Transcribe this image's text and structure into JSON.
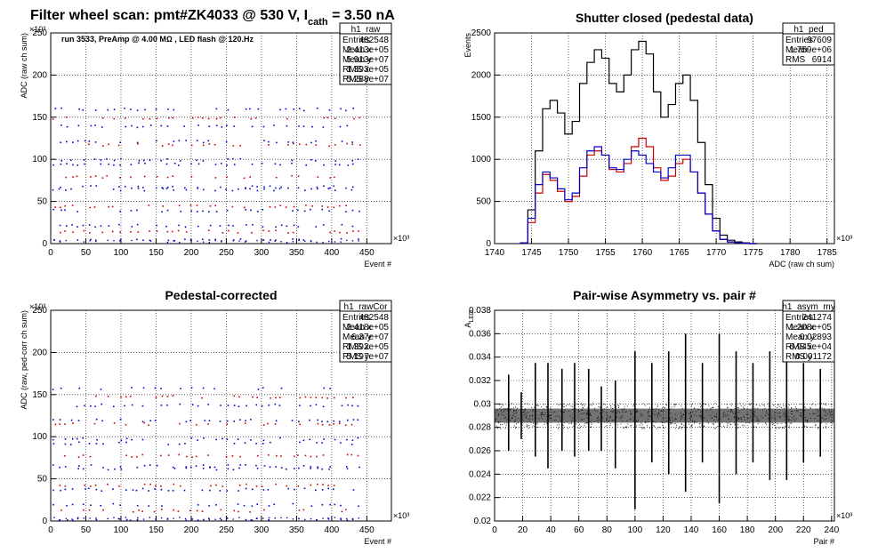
{
  "canvas_title_parts": {
    "pre": "Filter wheel scan: pmt#ZK4033 @   530 V, I",
    "sub": "cath",
    "post": " = 3.50 nA"
  },
  "chart_data": [
    {
      "id": "raw",
      "type": "scatter",
      "title": "",
      "xlabel": "Event #",
      "ylabel": "ADC (raw ch sum)",
      "x_multiplier": "×10³",
      "y_multiplier": "×10³",
      "xlim": [
        0,
        485
      ],
      "ylim": [
        0,
        250
      ],
      "xticks": [
        0,
        50,
        100,
        150,
        200,
        250,
        300,
        350,
        400,
        450
      ],
      "yticks": [
        0,
        50,
        100,
        150,
        200,
        250
      ],
      "grid": true,
      "annotation": "run 3533, PreAmp @ 4.00 MΩ , LED flash @  120.Hz",
      "levels": [
        160,
        150,
        140,
        122,
        118,
        100,
        95,
        80,
        68,
        65,
        45,
        40,
        22,
        15,
        5
      ],
      "colors": {
        "a": "#0000cc",
        "b": "#cc0000"
      },
      "stats": {
        "title": "h1_raw",
        "rows": [
          [
            "Entries",
            "482548"
          ],
          [
            "Mean x",
            "2.413e+05"
          ],
          [
            "Mean y",
            "5.913e+07"
          ],
          [
            "RMS x",
            "1.393e+05"
          ],
          [
            "RMS y",
            "5.288e+07"
          ]
        ]
      }
    },
    {
      "id": "ped",
      "type": "line",
      "title": "Shutter closed (pedestal data)",
      "xlabel": "ADC (raw ch sum)",
      "ylabel": "Events",
      "x_multiplier": "×10³",
      "xlim": [
        1740,
        1786
      ],
      "ylim": [
        0,
        2500
      ],
      "xticks": [
        1740,
        1745,
        1750,
        1755,
        1760,
        1765,
        1770,
        1775,
        1780,
        1785
      ],
      "yticks": [
        0,
        500,
        1000,
        1500,
        2000,
        2500
      ],
      "grid": true,
      "x": [
        1744,
        1745,
        1746,
        1747,
        1748,
        1749,
        1750,
        1751,
        1752,
        1753,
        1754,
        1755,
        1756,
        1757,
        1758,
        1759,
        1760,
        1761,
        1762,
        1763,
        1764,
        1765,
        1766,
        1767,
        1768,
        1769,
        1770,
        1771,
        1772,
        1773,
        1774,
        1775
      ],
      "series": [
        {
          "color": "#000000",
          "values": [
            10,
            400,
            1100,
            1600,
            1700,
            1550,
            1300,
            1450,
            1900,
            2150,
            2300,
            2200,
            1900,
            1800,
            2000,
            2300,
            2400,
            2250,
            1800,
            1500,
            1650,
            1900,
            2000,
            1700,
            1200,
            700,
            300,
            100,
            40,
            20,
            10,
            0
          ]
        },
        {
          "color": "#cc0000",
          "values": [
            5,
            250,
            600,
            820,
            750,
            620,
            500,
            560,
            800,
            1050,
            1100,
            1050,
            880,
            850,
            950,
            1150,
            1250,
            1150,
            900,
            750,
            800,
            950,
            1000,
            850,
            600,
            350,
            150,
            50,
            20,
            10,
            5,
            0
          ]
        },
        {
          "color": "#0000cc",
          "values": [
            5,
            300,
            700,
            850,
            780,
            650,
            520,
            600,
            900,
            1100,
            1150,
            1050,
            900,
            880,
            1000,
            1100,
            1050,
            950,
            850,
            780,
            900,
            1050,
            1050,
            850,
            600,
            350,
            150,
            50,
            20,
            10,
            5,
            0
          ]
        }
      ],
      "stats": {
        "title": "h1_ped",
        "rows": [
          [
            "Entries",
            "97609"
          ],
          [
            "Mean",
            "1.759e+06"
          ],
          [
            "RMS",
            "6914"
          ]
        ]
      }
    },
    {
      "id": "rawCor",
      "type": "scatter",
      "title": "Pedestal-corrected",
      "xlabel": "Event #",
      "ylabel": "ADC (raw, ped-corr ch sum)",
      "x_multiplier": "×10³",
      "y_multiplier": "×10³",
      "xlim": [
        0,
        485
      ],
      "ylim": [
        0,
        250
      ],
      "xticks": [
        0,
        50,
        100,
        150,
        200,
        250,
        300,
        350,
        400,
        450
      ],
      "yticks": [
        0,
        50,
        100,
        150,
        200,
        250
      ],
      "grid": true,
      "levels": [
        158,
        148,
        138,
        120,
        116,
        98,
        93,
        78,
        66,
        63,
        43,
        38,
        20,
        13,
        3
      ],
      "colors": {
        "a": "#0000cc",
        "b": "#cc0000"
      },
      "stats": {
        "title": "h1_rawCor",
        "rows": [
          [
            "Entries",
            "482548"
          ],
          [
            "Mean x",
            "2.418e+05"
          ],
          [
            "Mean y",
            "6.37e+07"
          ],
          [
            "RMS x",
            "1.392e+05"
          ],
          [
            "RMS y",
            "5.197e+07"
          ]
        ]
      }
    },
    {
      "id": "asym",
      "type": "scatter",
      "title": "Pair-wise Asymmetry vs. pair #",
      "xlabel": "Pair #",
      "ylabel_parts": {
        "main": "A",
        "sub": "LED"
      },
      "x_multiplier": "×10³",
      "xlim": [
        0,
        242
      ],
      "ylim": [
        0.02,
        0.038
      ],
      "xticks": [
        0,
        20,
        40,
        60,
        80,
        100,
        120,
        140,
        160,
        180,
        200,
        220,
        240
      ],
      "yticks": [
        0.02,
        0.022,
        0.024,
        0.026,
        0.028,
        0.03,
        0.032,
        0.034,
        0.036,
        0.038
      ],
      "grid": true,
      "band_center": 0.029,
      "band_width": 0.0012,
      "spikes": [
        {
          "x": 10,
          "lo": 0.026,
          "hi": 0.0325
        },
        {
          "x": 19,
          "lo": 0.027,
          "hi": 0.031
        },
        {
          "x": 29,
          "lo": 0.0255,
          "hi": 0.0335
        },
        {
          "x": 38,
          "lo": 0.0245,
          "hi": 0.0335
        },
        {
          "x": 48,
          "lo": 0.026,
          "hi": 0.033
        },
        {
          "x": 57,
          "lo": 0.0255,
          "hi": 0.0335
        },
        {
          "x": 67,
          "lo": 0.026,
          "hi": 0.033
        },
        {
          "x": 76,
          "lo": 0.026,
          "hi": 0.0315
        },
        {
          "x": 86,
          "lo": 0.0245,
          "hi": 0.032
        },
        {
          "x": 100,
          "lo": 0.021,
          "hi": 0.0345
        },
        {
          "x": 112,
          "lo": 0.025,
          "hi": 0.0335
        },
        {
          "x": 124,
          "lo": 0.024,
          "hi": 0.0345
        },
        {
          "x": 136,
          "lo": 0.0225,
          "hi": 0.036
        },
        {
          "x": 148,
          "lo": 0.025,
          "hi": 0.0335
        },
        {
          "x": 160,
          "lo": 0.0215,
          "hi": 0.036
        },
        {
          "x": 172,
          "lo": 0.024,
          "hi": 0.0345
        },
        {
          "x": 184,
          "lo": 0.025,
          "hi": 0.0335
        },
        {
          "x": 196,
          "lo": 0.0235,
          "hi": 0.0345
        },
        {
          "x": 208,
          "lo": 0.0235,
          "hi": 0.0355
        },
        {
          "x": 220,
          "lo": 0.025,
          "hi": 0.0335
        },
        {
          "x": 232,
          "lo": 0.0255,
          "hi": 0.033
        }
      ],
      "stats": {
        "title": "h1_asym_my",
        "rows": [
          [
            "Entries",
            "241274"
          ],
          [
            "Mean x",
            "1.208e+05"
          ],
          [
            "Mean y",
            "0.02893"
          ],
          [
            "RMS x",
            "6.945e+04"
          ],
          [
            "RMS y",
            "0.001172"
          ]
        ]
      }
    }
  ]
}
